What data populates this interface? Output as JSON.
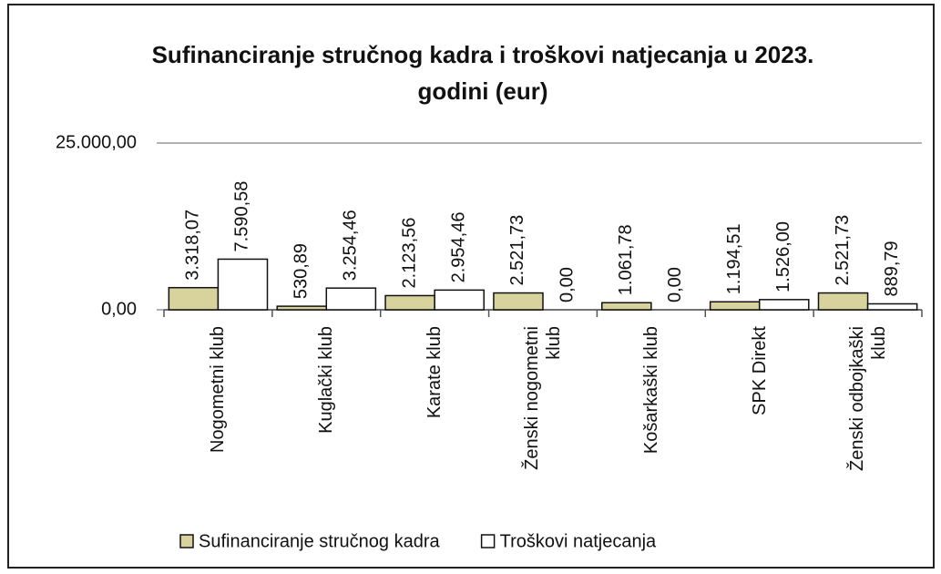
{
  "chart_data": {
    "type": "bar",
    "title": "Sufinanciranje stručnog kadra i troškovi natjecanja u 2023. godini (eur)",
    "categories": [
      "Nogometni klub",
      "Kuglački klub",
      "Karate klub",
      "Ženski nogometni klub",
      "Košarkaški klub",
      "SPK Direkt",
      "Ženski odbojkaški klub"
    ],
    "series": [
      {
        "name": "Sufinanciranje stručnog kadra",
        "color": "#d8d29c",
        "values": [
          3318.07,
          530.89,
          2123.56,
          2521.73,
          1061.78,
          1194.51,
          2521.73
        ],
        "value_labels": [
          "3.318,07",
          "530,89",
          "2.123,56",
          "2.521,73",
          "1.061,78",
          "1.194,51",
          "2.521,73"
        ]
      },
      {
        "name": "Troškovi natjecanja",
        "color": "#ffffff",
        "values": [
          7590.58,
          3254.46,
          2954.46,
          0,
          0,
          1526.0,
          889.79
        ],
        "value_labels": [
          "7.590,58",
          "3.254,46",
          "2.954,46",
          "0,00",
          "0,00",
          "1.526,00",
          "889,79"
        ]
      }
    ],
    "ylim": [
      0,
      25000
    ],
    "yticks": [
      {
        "value": 0,
        "label": "0,00"
      },
      {
        "value": 25000,
        "label": "25.000,00"
      }
    ],
    "grid": true,
    "legend": "bottom"
  }
}
